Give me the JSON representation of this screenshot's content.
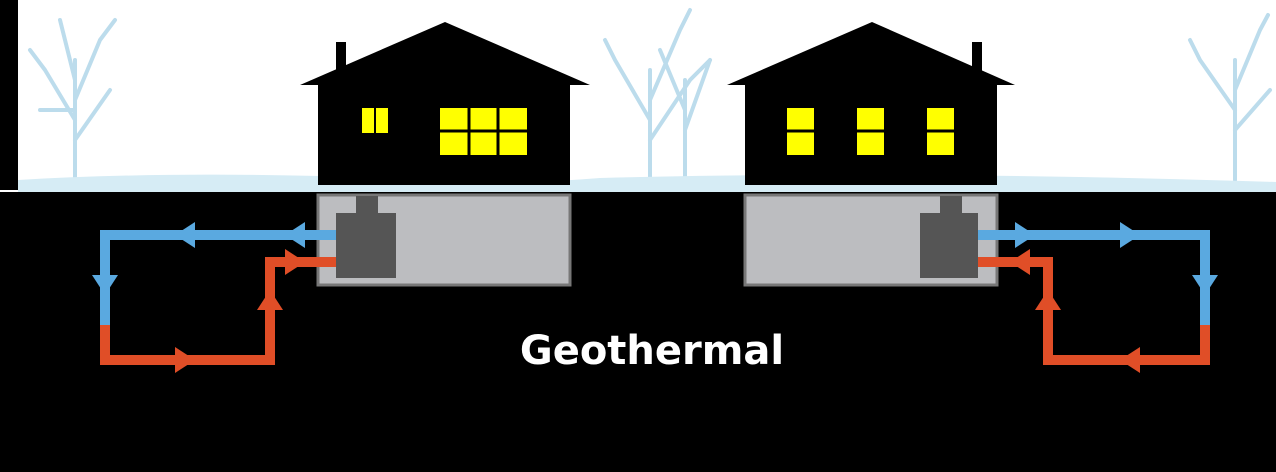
{
  "label": "Geothermal"
}
